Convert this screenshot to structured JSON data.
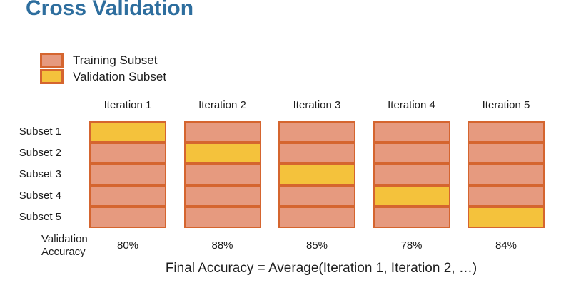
{
  "title": "Cross Validation",
  "colors": {
    "title": "#2E6E9E",
    "training_fill": "#E69A7F",
    "validation_fill": "#F4C23C",
    "cell_border": "#D5652F",
    "text": "#1C1C1C",
    "background": "#FFFFFF"
  },
  "legend": [
    {
      "label": "Training Subset",
      "swatch": "training"
    },
    {
      "label": "Validation Subset",
      "swatch": "validation"
    }
  ],
  "subset_labels": [
    "Subset 1",
    "Subset 2",
    "Subset 3",
    "Subset 4",
    "Subset 5"
  ],
  "iterations": [
    {
      "label": "Iteration 1",
      "validation_subset": 1,
      "accuracy": "80%"
    },
    {
      "label": "Iteration 2",
      "validation_subset": 2,
      "accuracy": "88%"
    },
    {
      "label": "Iteration 3",
      "validation_subset": 3,
      "accuracy": "85%"
    },
    {
      "label": "Iteration 4",
      "validation_subset": 4,
      "accuracy": "78%"
    },
    {
      "label": "Iteration 5",
      "validation_subset": 5,
      "accuracy": "84%"
    }
  ],
  "accuracy_label_lines": [
    "Validation",
    "Accuracy"
  ],
  "footer": "Final Accuracy = Average(Iteration 1, Iteration 2,  …)"
}
